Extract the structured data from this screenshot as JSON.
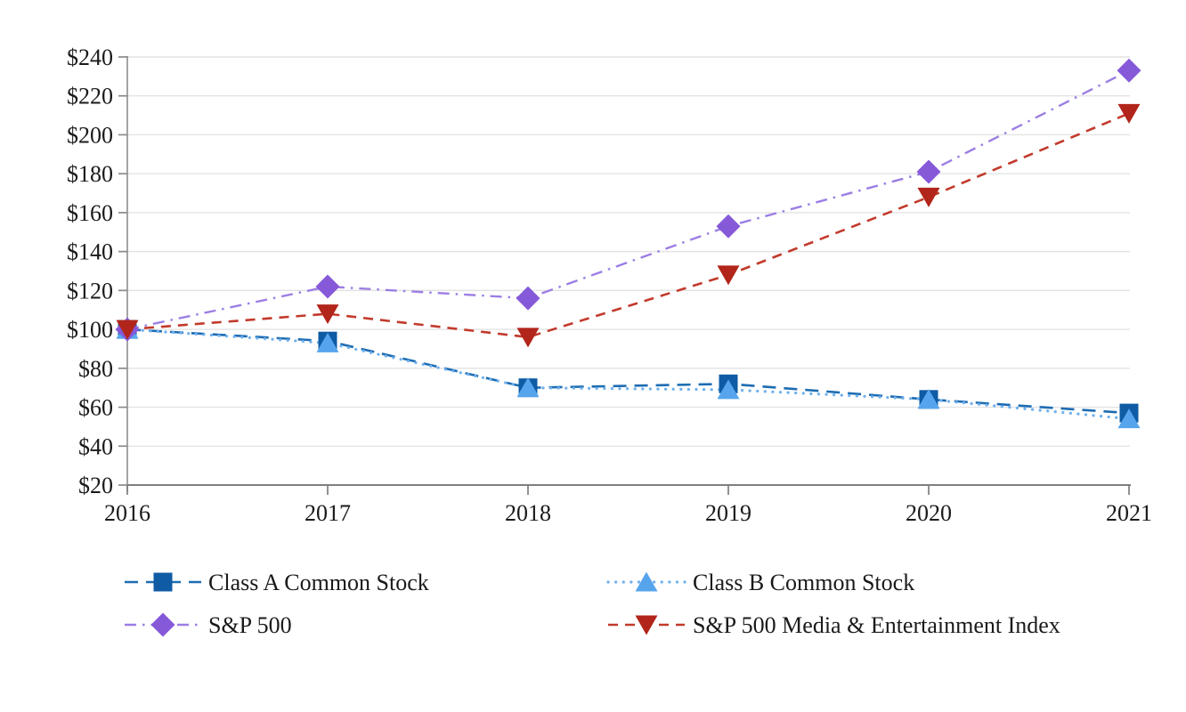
{
  "page": {
    "background": "#ffffff",
    "title": ""
  },
  "chart_data": {
    "type": "line",
    "title": "",
    "xlabel": "",
    "ylabel": "",
    "x": [
      2016,
      2017,
      2018,
      2019,
      2020,
      2021
    ],
    "x_tick_labels": [
      "2016",
      "2017",
      "2018",
      "2019",
      "2020",
      "2021"
    ],
    "ylim": [
      20,
      240
    ],
    "y_tick_step": 20,
    "y_tick_labels": [
      "$20",
      "$40",
      "$60",
      "$80",
      "$100",
      "$120",
      "$140",
      "$160",
      "$180",
      "$200",
      "$220",
      "$240"
    ],
    "value_prefix": "$",
    "base_value": 100,
    "grid": "horizontal",
    "legend_position": "bottom-two-columns",
    "series": [
      {
        "name": "Class A Common Stock",
        "values": [
          100,
          94,
          70,
          72,
          64,
          57
        ],
        "marker": "square",
        "line_style": "long-dash",
        "line_color": "#1E6CB2",
        "marker_color": "#0F5BA4"
      },
      {
        "name": "Class B Common Stock",
        "values": [
          100,
          93,
          70,
          69,
          64,
          54
        ],
        "marker": "triangle-up",
        "line_style": "dot",
        "line_color": "#6FB0EE",
        "marker_color": "#56A5EC"
      },
      {
        "name": "S&P 500",
        "values": [
          100,
          122,
          116,
          153,
          181,
          233
        ],
        "marker": "diamond",
        "line_style": "dash-dot",
        "line_color": "#9C7EE4",
        "marker_color": "#8659D9"
      },
      {
        "name": "S&P 500 Media & Entertainment Index",
        "values": [
          100,
          108,
          96,
          128,
          168,
          211
        ],
        "marker": "triangle-down",
        "line_style": "dash",
        "line_color": "#C23A2C",
        "marker_color": "#B2251B"
      }
    ],
    "colors": {
      "grid_line": "#E3E3E3",
      "y_axis_line": "#949494",
      "x_axis_line": "#7F7F7F",
      "tick_mark": "#8A8A8A",
      "label_text": "#1A1A1A"
    }
  }
}
